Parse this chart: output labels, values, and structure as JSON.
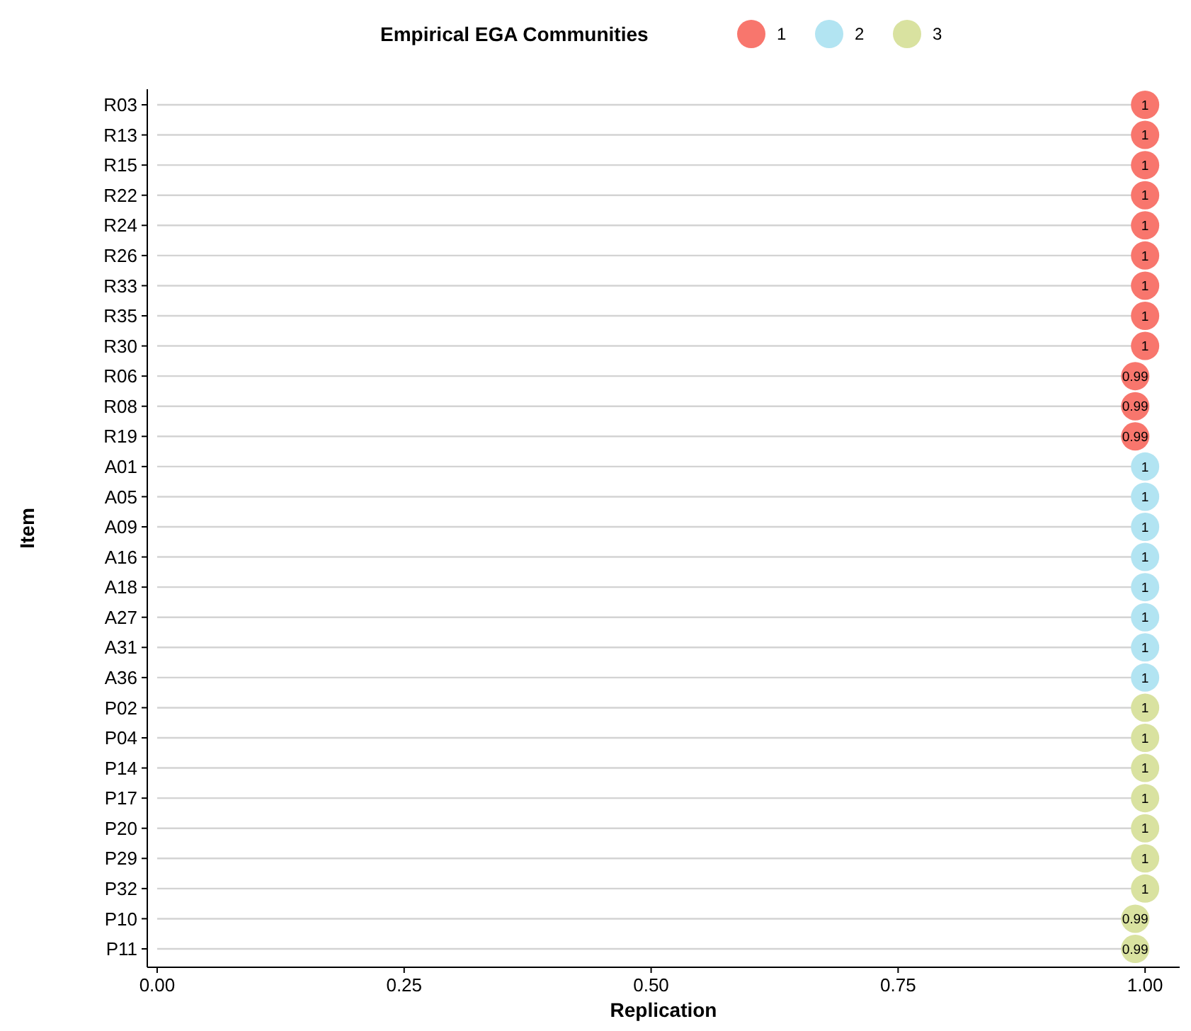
{
  "chart_data": {
    "type": "lollipop",
    "orientation": "horizontal",
    "xlabel": "Replication",
    "ylabel": "Item",
    "legend_title": "Empirical EGA Communities",
    "legend": "top",
    "marker": "circle",
    "data_labels": true,
    "categories": [
      "R03",
      "R13",
      "R15",
      "R22",
      "R24",
      "R26",
      "R33",
      "R35",
      "R30",
      "R06",
      "R08",
      "R19",
      "A01",
      "A05",
      "A09",
      "A16",
      "A18",
      "A27",
      "A31",
      "A36",
      "P02",
      "P04",
      "P14",
      "P17",
      "P20",
      "P29",
      "P32",
      "P10",
      "P11"
    ],
    "xlim": [
      -0.01,
      1.035
    ],
    "xticks": [
      {
        "value": 0,
        "label": "0.00"
      },
      {
        "value": 0.25,
        "label": "0.25"
      },
      {
        "value": 0.5,
        "label": "0.50"
      },
      {
        "value": 0.75,
        "label": "0.75"
      },
      {
        "value": 1,
        "label": "1.00"
      }
    ],
    "series": [
      {
        "name": "1",
        "color": "#f8766d",
        "values": [
          1,
          1,
          1,
          1,
          1,
          1,
          1,
          1,
          1,
          0.99,
          0.99,
          0.99,
          null,
          null,
          null,
          null,
          null,
          null,
          null,
          null,
          null,
          null,
          null,
          null,
          null,
          null,
          null,
          null,
          null
        ]
      },
      {
        "name": "2",
        "color": "#b2e4f2",
        "values": [
          null,
          null,
          null,
          null,
          null,
          null,
          null,
          null,
          null,
          null,
          null,
          null,
          1,
          1,
          1,
          1,
          1,
          1,
          1,
          1,
          null,
          null,
          null,
          null,
          null,
          null,
          null,
          null,
          null
        ]
      },
      {
        "name": "3",
        "color": "#d9e2a0",
        "values": [
          null,
          null,
          null,
          null,
          null,
          null,
          null,
          null,
          null,
          null,
          null,
          null,
          null,
          null,
          null,
          null,
          null,
          null,
          null,
          null,
          1,
          1,
          1,
          1,
          1,
          1,
          1,
          0.99,
          0.99
        ]
      }
    ]
  }
}
